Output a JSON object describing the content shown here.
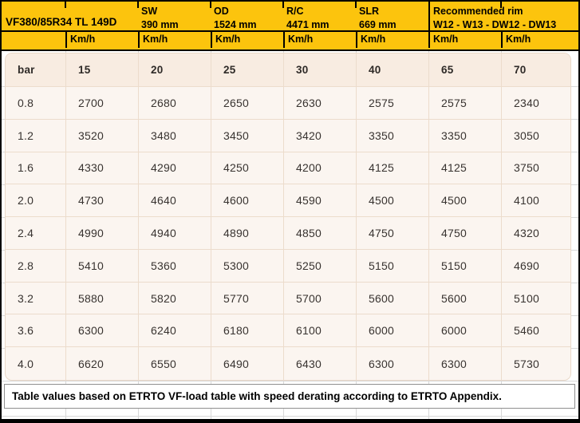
{
  "header": {
    "title": "VF380/85R34 TL 149D",
    "specs": [
      {
        "label": "SW",
        "value": "390 mm"
      },
      {
        "label": "OD",
        "value": "1524 mm"
      },
      {
        "label": "R/C",
        "value": "4471 mm"
      },
      {
        "label": "SLR",
        "value": "669 mm"
      }
    ],
    "rim": {
      "label": "Recommended rim",
      "value": "W12 - W13 - DW12 - DW13"
    },
    "unit_label": "Km/h"
  },
  "table": {
    "pressure_unit": "bar",
    "speeds": [
      "15",
      "20",
      "25",
      "30",
      "40",
      "65",
      "70"
    ],
    "rows": [
      {
        "bar": "0.8",
        "values": [
          "2700",
          "2680",
          "2650",
          "2630",
          "2575",
          "2575",
          "2340"
        ]
      },
      {
        "bar": "1.2",
        "values": [
          "3520",
          "3480",
          "3450",
          "3420",
          "3350",
          "3350",
          "3050"
        ]
      },
      {
        "bar": "1.6",
        "values": [
          "4330",
          "4290",
          "4250",
          "4200",
          "4125",
          "4125",
          "3750"
        ]
      },
      {
        "bar": "2.0",
        "values": [
          "4730",
          "4640",
          "4600",
          "4590",
          "4500",
          "4500",
          "4100"
        ]
      },
      {
        "bar": "2.4",
        "values": [
          "4990",
          "4940",
          "4890",
          "4850",
          "4750",
          "4750",
          "4320"
        ]
      },
      {
        "bar": "2.8",
        "values": [
          "5410",
          "5360",
          "5300",
          "5250",
          "5150",
          "5150",
          "4690"
        ]
      },
      {
        "bar": "3.2",
        "values": [
          "5880",
          "5820",
          "5770",
          "5700",
          "5600",
          "5600",
          "5100"
        ]
      },
      {
        "bar": "3.6",
        "values": [
          "6300",
          "6240",
          "6180",
          "6100",
          "6000",
          "6000",
          "5460"
        ]
      },
      {
        "bar": "4.0",
        "values": [
          "6620",
          "6550",
          "6490",
          "6430",
          "6300",
          "6300",
          "5730"
        ]
      }
    ]
  },
  "footer": {
    "note": "Table values based on ETRTO VF-load table with speed derating according to ETRTO Appendix."
  },
  "colors": {
    "header_yellow": "#FCC40D",
    "header_border": "#000000",
    "panel_bg": "#FBF5F0",
    "panel_header_bg": "#F8ECE1",
    "panel_border": "#E9D8C8",
    "grid_line": "#D8D8D8"
  }
}
